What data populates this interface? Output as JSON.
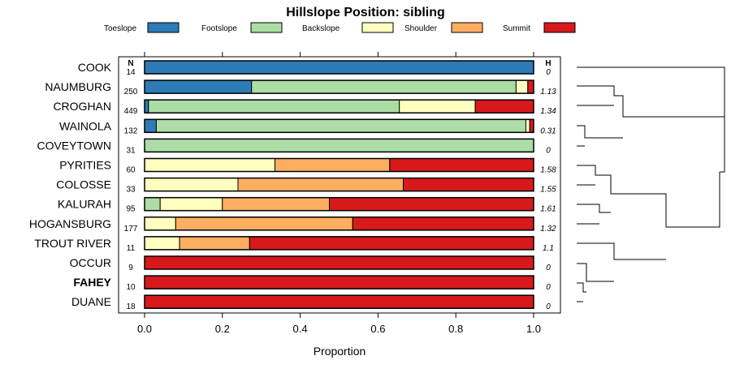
{
  "chart_data": {
    "type": "bar",
    "stacked": true,
    "orientation": "horizontal",
    "title": "Hillslope Position: sibling",
    "xlabel": "Proportion",
    "ylabel": "",
    "xlim": [
      0,
      1
    ],
    "xticks": [
      0.0,
      0.2,
      0.4,
      0.6,
      0.8,
      1.0
    ],
    "xtick_labels": [
      "0.0",
      "0.2",
      "0.4",
      "0.6",
      "0.8",
      "1.0"
    ],
    "n_header": "N",
    "h_header": "H",
    "legend": [
      {
        "name": "Toeslope",
        "color": "#2c7bb6"
      },
      {
        "name": "Footslope",
        "color": "#abdda4"
      },
      {
        "name": "Backslope",
        "color": "#ffffbf"
      },
      {
        "name": "Shoulder",
        "color": "#fdae61"
      },
      {
        "name": "Summit",
        "color": "#d7191c"
      }
    ],
    "categories": [
      "COOK",
      "NAUMBURG",
      "CROGHAN",
      "WAINOLA",
      "COVEYTOWN",
      "PYRITIES",
      "COLOSSE",
      "KALURAH",
      "HOGANSBURG",
      "TROUT RIVER",
      "OCCUR",
      "FAHEY",
      "DUANE"
    ],
    "highlight": "FAHEY",
    "n": [
      "14",
      "250",
      "449",
      "132",
      "31",
      "60",
      "33",
      "95",
      "177",
      "11",
      "9",
      "10",
      "18"
    ],
    "h": [
      "0",
      "1.13",
      "1.34",
      "0.31",
      "0",
      "1.58",
      "1.55",
      "1.61",
      "1.32",
      "1.1",
      "0",
      "0",
      "0"
    ],
    "series": [
      {
        "name": "Toeslope",
        "values": [
          1.0,
          0.275,
          0.01,
          0.03,
          0,
          0,
          0,
          0,
          0,
          0,
          0,
          0,
          0
        ]
      },
      {
        "name": "Footslope",
        "values": [
          0,
          0.68,
          0.645,
          0.95,
          1.0,
          0,
          0,
          0.04,
          0,
          0,
          0,
          0,
          0
        ]
      },
      {
        "name": "Backslope",
        "values": [
          0,
          0.03,
          0.195,
          0.01,
          0,
          0.335,
          0.24,
          0.16,
          0.08,
          0.09,
          0,
          0,
          0
        ]
      },
      {
        "name": "Shoulder",
        "values": [
          0,
          0,
          0,
          0,
          0,
          0.295,
          0.425,
          0.275,
          0.455,
          0.18,
          0,
          0,
          0
        ]
      },
      {
        "name": "Summit",
        "values": [
          0,
          0.015,
          0.15,
          0.01,
          0,
          0.37,
          0.335,
          0.525,
          0.465,
          0.73,
          1.0,
          1.0,
          1.0
        ]
      }
    ]
  }
}
